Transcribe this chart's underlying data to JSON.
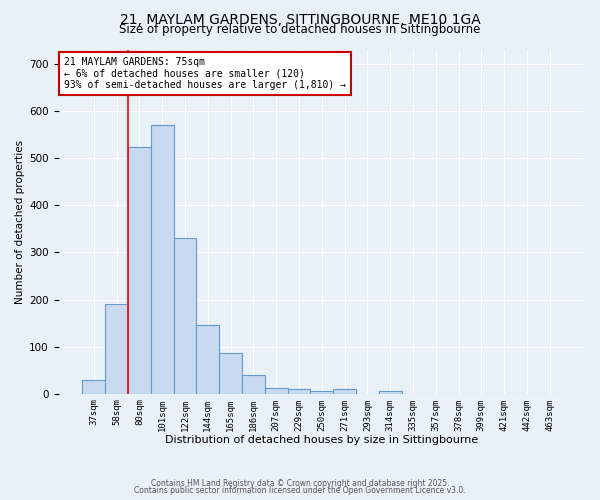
{
  "title_line1": "21, MAYLAM GARDENS, SITTINGBOURNE, ME10 1GA",
  "title_line2": "Size of property relative to detached houses in Sittingbourne",
  "xlabel": "Distribution of detached houses by size in Sittingbourne",
  "ylabel": "Number of detached properties",
  "categories": [
    "37sqm",
    "58sqm",
    "80sqm",
    "101sqm",
    "122sqm",
    "144sqm",
    "165sqm",
    "186sqm",
    "207sqm",
    "229sqm",
    "250sqm",
    "271sqm",
    "293sqm",
    "314sqm",
    "335sqm",
    "357sqm",
    "378sqm",
    "399sqm",
    "421sqm",
    "442sqm",
    "463sqm"
  ],
  "values": [
    30,
    190,
    525,
    570,
    330,
    145,
    87,
    40,
    12,
    10,
    5,
    10,
    0,
    5,
    0,
    0,
    0,
    0,
    0,
    0,
    0
  ],
  "bar_color": "#c9d9f0",
  "bar_edge_color": "#6699cc",
  "bar_edge_width": 0.8,
  "red_line_x": 1.5,
  "annotation_text": "21 MAYLAM GARDENS: 75sqm\n← 6% of detached houses are smaller (120)\n93% of semi-detached houses are larger (1,810) →",
  "annotation_box_color": "#ffffff",
  "annotation_box_edge_color": "#cc0000",
  "ylim": [
    0,
    730
  ],
  "yticks": [
    0,
    100,
    200,
    300,
    400,
    500,
    600,
    700
  ],
  "background_color": "#e8f0f8",
  "grid_color": "#ffffff",
  "footer_line1": "Contains HM Land Registry data © Crown copyright and database right 2025.",
  "footer_line2": "Contains public sector information licensed under the Open Government Licence v3.0.",
  "title_fontsize": 10,
  "subtitle_fontsize": 8.5
}
